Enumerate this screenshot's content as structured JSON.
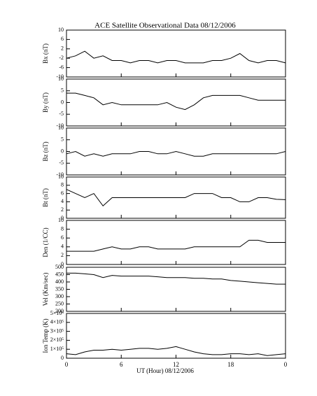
{
  "chart_data": [
    {
      "type": "line",
      "title": "ACE Satellite Observational Data   08/12/2006",
      "ylabel": "Bx (nT)",
      "xlim": [
        0,
        24
      ],
      "xticks": [
        0,
        6,
        12,
        18,
        {
          "value": 24,
          "label": "0"
        }
      ],
      "ylim": [
        -10,
        10
      ],
      "yticks": [
        -10,
        -6,
        -2,
        2,
        6,
        10
      ],
      "x": [
        0,
        1,
        2,
        3,
        4,
        5,
        6,
        7,
        8,
        9,
        10,
        11,
        12,
        13,
        14,
        15,
        16,
        17,
        18,
        19,
        20,
        21,
        22,
        23,
        24
      ],
      "values": [
        -2,
        -1,
        1,
        -2,
        -1,
        -3,
        -3,
        -4,
        -3,
        -3,
        -4,
        -3,
        -3,
        -4,
        -4,
        -4,
        -3,
        -3,
        -2,
        0,
        -3,
        -4,
        -3,
        -3,
        -4
      ]
    },
    {
      "type": "line",
      "ylabel": "By (nT)",
      "xlim": [
        0,
        24
      ],
      "xticks": [
        0,
        6,
        12,
        18,
        {
          "value": 24,
          "label": "0"
        }
      ],
      "ylim": [
        -10,
        10
      ],
      "yticks": [
        -10,
        -5,
        0,
        5,
        10
      ],
      "x": [
        0,
        1,
        2,
        3,
        4,
        5,
        6,
        7,
        8,
        9,
        10,
        11,
        12,
        13,
        14,
        15,
        16,
        17,
        18,
        19,
        20,
        21,
        22,
        23,
        24
      ],
      "values": [
        4,
        4,
        3,
        2,
        -1,
        0,
        -1,
        -1,
        -1,
        -1,
        -1,
        0,
        -2,
        -3,
        -1,
        2,
        3,
        3,
        3,
        3,
        2,
        1,
        1,
        1,
        1
      ]
    },
    {
      "type": "line",
      "ylabel": "Bz (nT)",
      "xlim": [
        0,
        24
      ],
      "xticks": [
        0,
        6,
        12,
        18,
        {
          "value": 24,
          "label": "0"
        }
      ],
      "ylim": [
        -10,
        10
      ],
      "yticks": [
        -10,
        -5,
        0,
        5,
        10
      ],
      "x": [
        0,
        1,
        2,
        3,
        4,
        5,
        6,
        7,
        8,
        9,
        10,
        11,
        12,
        13,
        14,
        15,
        16,
        17,
        18,
        19,
        20,
        21,
        22,
        23,
        24
      ],
      "values": [
        -1,
        0,
        -2,
        -1,
        -2,
        -1,
        -1,
        -1,
        0,
        0,
        -1,
        -1,
        0,
        -1,
        -2,
        -2,
        -1,
        -1,
        -1,
        -1,
        -1,
        -1,
        -1,
        -1,
        0
      ]
    },
    {
      "type": "line",
      "ylabel": "Bt (nT)",
      "xlim": [
        0,
        24
      ],
      "xticks": [
        0,
        6,
        12,
        18,
        {
          "value": 24,
          "label": "0"
        }
      ],
      "ylim": [
        0,
        10
      ],
      "yticks": [
        0,
        2,
        4,
        6,
        8,
        10
      ],
      "x": [
        0,
        1,
        2,
        3,
        4,
        5,
        6,
        7,
        8,
        9,
        10,
        11,
        12,
        13,
        14,
        15,
        16,
        17,
        18,
        19,
        20,
        21,
        22,
        23,
        24
      ],
      "values": [
        7,
        6,
        5,
        6,
        3,
        5,
        5,
        5,
        5,
        5,
        5,
        5,
        5,
        5,
        6,
        6,
        6,
        5,
        5,
        4,
        4,
        5,
        5,
        4.6,
        4.5
      ]
    },
    {
      "type": "line",
      "ylabel": "Den (1/CC)",
      "xlim": [
        0,
        24
      ],
      "xticks": [
        0,
        6,
        12,
        18,
        {
          "value": 24,
          "label": "0"
        }
      ],
      "ylim": [
        0,
        10
      ],
      "yticks": [
        0,
        2,
        4,
        6,
        8,
        10
      ],
      "x": [
        0,
        1,
        2,
        3,
        4,
        5,
        6,
        7,
        8,
        9,
        10,
        11,
        12,
        13,
        14,
        15,
        16,
        17,
        18,
        19,
        20,
        21,
        22,
        23,
        24
      ],
      "values": [
        3,
        3,
        3,
        3,
        3.5,
        4,
        3.5,
        3.5,
        4,
        4,
        3.5,
        3.5,
        3.5,
        3.5,
        4,
        4,
        4,
        4,
        4,
        4,
        5.5,
        5.5,
        5,
        5,
        5
      ]
    },
    {
      "type": "line",
      "ylabel": "Vel (Km/sec)",
      "xlim": [
        0,
        24
      ],
      "xticks": [
        0,
        6,
        12,
        18,
        {
          "value": 24,
          "label": "0"
        }
      ],
      "ylim": [
        200,
        500
      ],
      "yticks": [
        200,
        250,
        300,
        350,
        400,
        450,
        500
      ],
      "x": [
        0,
        1,
        2,
        3,
        4,
        5,
        6,
        7,
        8,
        9,
        10,
        11,
        12,
        13,
        14,
        15,
        16,
        17,
        18,
        19,
        20,
        21,
        22,
        23,
        24
      ],
      "values": [
        460,
        460,
        455,
        450,
        430,
        445,
        440,
        440,
        440,
        440,
        435,
        430,
        430,
        430,
        425,
        425,
        420,
        420,
        410,
        405,
        400,
        395,
        390,
        385,
        385
      ]
    },
    {
      "type": "line",
      "ylabel": "Ion Temp (K)",
      "xlabel": "UT (Hour)   08/12/2006",
      "xlim": [
        0,
        24
      ],
      "xticks": [
        0,
        6,
        12,
        18,
        {
          "value": 24,
          "label": "0"
        }
      ],
      "ylim": [
        0,
        500000
      ],
      "yticks": [
        0,
        {
          "value": 100000,
          "label": "1×10⁵"
        },
        {
          "value": 200000,
          "label": "2×10⁵"
        },
        {
          "value": 300000,
          "label": "3×10⁵"
        },
        {
          "value": 400000,
          "label": "4×10⁵"
        },
        {
          "value": 500000,
          "label": "5×10⁵"
        }
      ],
      "x": [
        0,
        1,
        2,
        3,
        4,
        5,
        6,
        7,
        8,
        9,
        10,
        11,
        12,
        13,
        14,
        15,
        16,
        17,
        18,
        19,
        20,
        21,
        22,
        23,
        24
      ],
      "values": [
        50000,
        40000,
        70000,
        90000,
        90000,
        100000,
        90000,
        100000,
        110000,
        110000,
        100000,
        110000,
        130000,
        100000,
        70000,
        50000,
        40000,
        40000,
        50000,
        50000,
        40000,
        50000,
        30000,
        40000,
        50000
      ]
    }
  ]
}
